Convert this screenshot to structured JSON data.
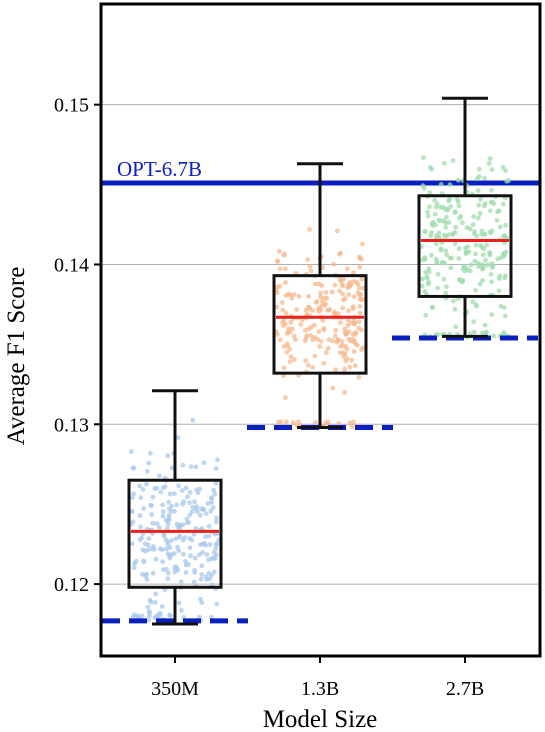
{
  "chart_data": {
    "type": "box",
    "title": "",
    "xlabel": "Model Size",
    "ylabel": "Average F1 Score",
    "ylim": [
      0.1155,
      0.1563
    ],
    "yticks": [
      0.12,
      0.13,
      0.14,
      0.15
    ],
    "ytick_labels": [
      "0.12",
      "0.13",
      "0.14",
      "0.15"
    ],
    "grid": "horizontal",
    "categories": [
      "350M",
      "1.3B",
      "2.7B"
    ],
    "boxes": [
      {
        "category": "350M",
        "whisker_low": 0.1175,
        "q1": 0.1198,
        "median": 0.1233,
        "q3": 0.1265,
        "whisker_high": 0.1321,
        "baseline": 0.1177,
        "point_color": "#a9c8ec"
      },
      {
        "category": "1.3B",
        "whisker_low": 0.1298,
        "q1": 0.1332,
        "median": 0.1367,
        "q3": 0.1393,
        "whisker_high": 0.1463,
        "baseline": 0.1298,
        "point_color": "#f6b98f"
      },
      {
        "category": "2.7B",
        "whisker_low": 0.1355,
        "q1": 0.138,
        "median": 0.1415,
        "q3": 0.1443,
        "whisker_high": 0.1504,
        "baseline": 0.1354,
        "point_color": "#9fdcae"
      }
    ],
    "points_per_box": 260,
    "reference_line": {
      "label": "OPT-6.7B",
      "value": 0.1451
    },
    "colors": {
      "box": "#111111",
      "median": "#e8221b",
      "baseline": "#0a1fbf",
      "reference": "#0a1fbf",
      "grid": "#b0b0b0"
    }
  }
}
